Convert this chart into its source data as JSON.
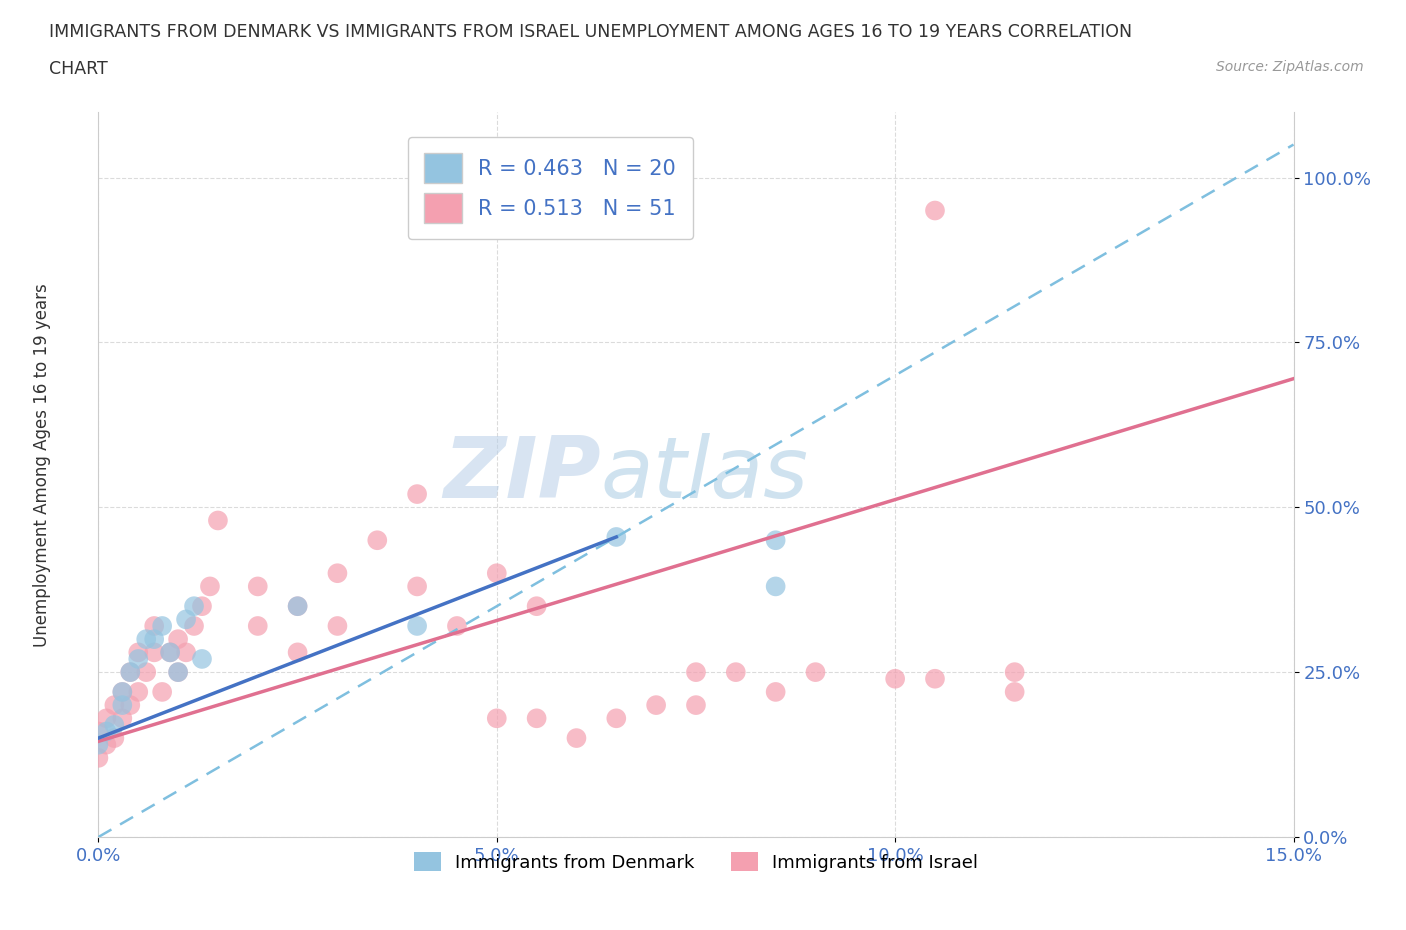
{
  "title_line1": "IMMIGRANTS FROM DENMARK VS IMMIGRANTS FROM ISRAEL UNEMPLOYMENT AMONG AGES 16 TO 19 YEARS CORRELATION",
  "title_line2": "CHART",
  "source": "Source: ZipAtlas.com",
  "ylabel": "Unemployment Among Ages 16 to 19 years",
  "xlim": [
    0.0,
    0.15
  ],
  "ylim": [
    0.0,
    1.1
  ],
  "xticks": [
    0.0,
    0.05,
    0.1,
    0.15
  ],
  "xticklabels": [
    "0.0%",
    "5.0%",
    "10.0%",
    "15.0%"
  ],
  "yticks": [
    0.0,
    0.25,
    0.5,
    0.75,
    1.0
  ],
  "yticklabels": [
    "0.0%",
    "25.0%",
    "50.0%",
    "75.0%",
    "100.0%"
  ],
  "denmark_color": "#94c4e0",
  "israel_color": "#f4a0b0",
  "denmark_R": 0.463,
  "denmark_N": 20,
  "israel_R": 0.513,
  "israel_N": 51,
  "watermark_zip": "ZIP",
  "watermark_atlas": "atlas",
  "denmark_trend_x0": 0.0,
  "denmark_trend_y0": 0.15,
  "denmark_trend_x1": 0.065,
  "denmark_trend_y1": 0.455,
  "israel_trend_x0": 0.0,
  "israel_trend_y0": 0.145,
  "israel_trend_x1": 0.15,
  "israel_trend_y1": 0.695,
  "dashed_trend_x0": 0.0,
  "dashed_trend_y0": 0.0,
  "dashed_trend_x1": 0.15,
  "dashed_trend_y1": 1.05,
  "trend_line_color_denmark": "#4472c4",
  "trend_line_color_denmark_dashed": "#7fbfdf",
  "trend_line_color_israel": "#e07090",
  "background_color": "#ffffff",
  "grid_color": "#cccccc",
  "denmark_x": [
    0.0,
    0.001,
    0.002,
    0.003,
    0.003,
    0.004,
    0.005,
    0.006,
    0.007,
    0.008,
    0.009,
    0.01,
    0.011,
    0.012,
    0.013,
    0.025,
    0.04,
    0.065,
    0.085,
    0.085
  ],
  "denmark_y": [
    0.14,
    0.16,
    0.17,
    0.2,
    0.22,
    0.25,
    0.27,
    0.3,
    0.3,
    0.32,
    0.28,
    0.25,
    0.33,
    0.35,
    0.27,
    0.35,
    0.32,
    0.455,
    0.38,
    0.45
  ],
  "israel_x": [
    0.0,
    0.0,
    0.001,
    0.001,
    0.002,
    0.002,
    0.003,
    0.003,
    0.004,
    0.004,
    0.005,
    0.005,
    0.006,
    0.007,
    0.007,
    0.008,
    0.009,
    0.01,
    0.01,
    0.011,
    0.012,
    0.013,
    0.014,
    0.015,
    0.02,
    0.02,
    0.025,
    0.025,
    0.03,
    0.03,
    0.035,
    0.04,
    0.04,
    0.045,
    0.05,
    0.05,
    0.055,
    0.055,
    0.06,
    0.065,
    0.07,
    0.075,
    0.075,
    0.08,
    0.085,
    0.09,
    0.1,
    0.105,
    0.105,
    0.115,
    0.115
  ],
  "israel_y": [
    0.12,
    0.16,
    0.14,
    0.18,
    0.15,
    0.2,
    0.18,
    0.22,
    0.2,
    0.25,
    0.22,
    0.28,
    0.25,
    0.28,
    0.32,
    0.22,
    0.28,
    0.25,
    0.3,
    0.28,
    0.32,
    0.35,
    0.38,
    0.48,
    0.32,
    0.38,
    0.28,
    0.35,
    0.32,
    0.4,
    0.45,
    0.38,
    0.52,
    0.32,
    0.4,
    0.18,
    0.18,
    0.35,
    0.15,
    0.18,
    0.2,
    0.2,
    0.25,
    0.25,
    0.22,
    0.25,
    0.24,
    0.24,
    0.95,
    0.22,
    0.25
  ]
}
